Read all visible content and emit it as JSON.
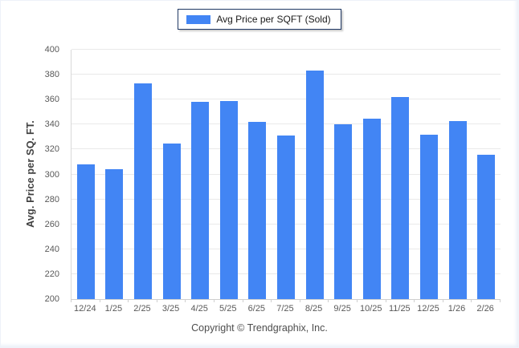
{
  "legend": {
    "label": "Avg Price per SQFT (Sold)",
    "swatch_color": "#4285f4"
  },
  "footer": {
    "copyright": "Copyright © Trendgraphix, Inc."
  },
  "chart_data": {
    "type": "bar",
    "title": "",
    "series_name": "Avg Price per SQFT (Sold)",
    "categories": [
      "12/24",
      "1/25",
      "2/25",
      "3/25",
      "4/25",
      "5/25",
      "6/25",
      "7/25",
      "8/25",
      "9/25",
      "10/25",
      "11/25",
      "12/25",
      "1/26",
      "2/26"
    ],
    "values": [
      308,
      304,
      373,
      325,
      358,
      359,
      342,
      331,
      383,
      340,
      345,
      362,
      332,
      343,
      316
    ],
    "xlabel": "",
    "ylabel": "Avg. Price per SQ. FT.",
    "ylim": [
      200,
      400
    ],
    "ytick_step": 20,
    "yticks": [
      200,
      220,
      240,
      260,
      280,
      300,
      320,
      340,
      360,
      380,
      400
    ],
    "bar_color": "#4285f4",
    "grid": true,
    "grid_color": "#e9e9e9",
    "legend_position": "top-center"
  }
}
